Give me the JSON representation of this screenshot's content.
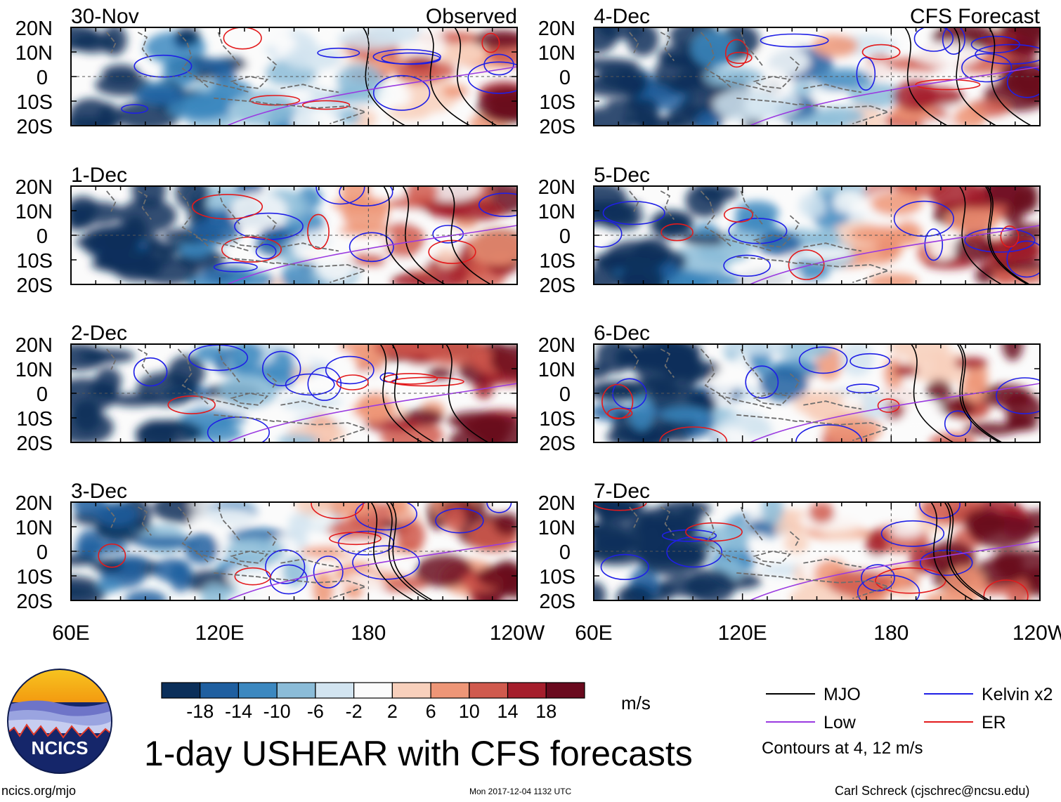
{
  "chart_data": {
    "type": "heatmap",
    "title": "1-day USHEAR with CFS forecasts",
    "columns": [
      {
        "label": "Observed",
        "panels": [
          "30-Nov",
          "1-Dec",
          "2-Dec",
          "3-Dec"
        ]
      },
      {
        "label": "CFS Forecast",
        "panels": [
          "4-Dec",
          "5-Dec",
          "6-Dec",
          "7-Dec"
        ]
      }
    ],
    "x_ticks": [
      "60E",
      "120E",
      "180",
      "120W"
    ],
    "x_range_deg_east": [
      60,
      240
    ],
    "y_ticks": [
      "20N",
      "10N",
      "0",
      "10S",
      "20S"
    ],
    "y_range_deg": [
      -20,
      20
    ],
    "colorbar": {
      "units": "m/s",
      "ticks": [
        "-18",
        "-14",
        "-10",
        "-6",
        "-2",
        "2",
        "6",
        "10",
        "14",
        "18"
      ],
      "colors": [
        "#0b2f5a",
        "#1f5fa0",
        "#3c88c0",
        "#8bbcd8",
        "#d2e4f0",
        "#fbfbfb",
        "#f8d0bc",
        "#ee9677",
        "#d05a4e",
        "#a51e2c",
        "#6a0a1e"
      ]
    },
    "contour_legend": [
      {
        "name": "MJO",
        "color": "#000000"
      },
      {
        "name": "Kelvin x2",
        "color": "#1f1fe6"
      },
      {
        "name": "Low",
        "color": "#9a3ae0"
      },
      {
        "name": "ER",
        "color": "#e31a1c"
      }
    ],
    "contour_note": "Contours at 4, 12 m/s"
  },
  "footer": {
    "logo_text": "NCICS",
    "url": "ncics.org/mjo",
    "timestamp": "Mon 2017-12-04 1132 UTC",
    "credit": "Carl Schreck (cjschrec@ncsu.edu)"
  }
}
